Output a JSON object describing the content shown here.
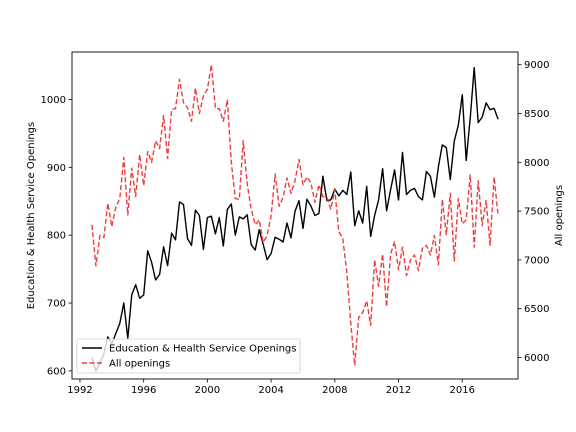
{
  "chart_data": {
    "type": "line",
    "title": "",
    "xlabel": "",
    "ylabel": "Education & Health Service Openings",
    "y2label": "All openings",
    "xlim": [
      1991.5,
      2019.5
    ],
    "ylim": [
      588,
      1070
    ],
    "y2lim": [
      5780,
      9130
    ],
    "x_ticks": [
      1992,
      1996,
      2000,
      2004,
      2008,
      2012,
      2016
    ],
    "y_ticks": [
      600,
      700,
      800,
      900,
      1000
    ],
    "y2_ticks": [
      6000,
      6500,
      7000,
      7500,
      8000,
      8500,
      9000
    ],
    "grid": false,
    "legend_position": "lower-left",
    "series": [
      {
        "name": "Education & Health Service Openings",
        "axis": "left",
        "color": "#000000",
        "style": "solid",
        "x": [
          1992.75,
          1993.0,
          1993.25,
          1993.5,
          1993.75,
          1994.0,
          1994.25,
          1994.5,
          1994.75,
          1995.0,
          1995.25,
          1995.5,
          1995.75,
          1996.0,
          1996.25,
          1996.5,
          1996.75,
          1997.0,
          1997.25,
          1997.5,
          1997.75,
          1998.0,
          1998.25,
          1998.5,
          1998.75,
          1999.0,
          1999.25,
          1999.5,
          1999.75,
          2000.0,
          2000.25,
          2000.5,
          2000.75,
          2001.0,
          2001.25,
          2001.5,
          2001.75,
          2002.0,
          2002.25,
          2002.5,
          2002.75,
          2003.0,
          2003.25,
          2003.5,
          2003.75,
          2004.0,
          2004.25,
          2004.5,
          2004.75,
          2005.0,
          2005.25,
          2005.5,
          2005.75,
          2006.0,
          2006.25,
          2006.5,
          2006.75,
          2007.0,
          2007.25,
          2007.5,
          2007.75,
          2008.0,
          2008.25,
          2008.5,
          2008.75,
          2009.0,
          2009.25,
          2009.5,
          2009.75,
          2010.0,
          2010.25,
          2010.5,
          2010.75,
          2011.0,
          2011.25,
          2011.5,
          2011.75,
          2012.0,
          2012.25,
          2012.5,
          2012.75,
          2013.0,
          2013.25,
          2013.5,
          2013.75,
          2014.0,
          2014.25,
          2014.5,
          2014.75,
          2015.0,
          2015.25,
          2015.5,
          2015.75,
          2016.0,
          2016.25,
          2016.5,
          2016.75,
          2017.0,
          2017.25,
          2017.5,
          2017.75,
          2018.0,
          2018.25
        ],
        "values": [
          620,
          600,
          612,
          625,
          650,
          640,
          655,
          670,
          700,
          648,
          712,
          727,
          707,
          712,
          777,
          760,
          734,
          742,
          783,
          755,
          803,
          793,
          849,
          845,
          795,
          785,
          837,
          829,
          779,
          826,
          828,
          802,
          826,
          784,
          838,
          846,
          800,
          827,
          824,
          830,
          786,
          778,
          808,
          787,
          764,
          773,
          797,
          794,
          790,
          818,
          796,
          835,
          851,
          810,
          853,
          843,
          829,
          832,
          887,
          851,
          852,
          868,
          858,
          866,
          860,
          893,
          814,
          836,
          818,
          872,
          798,
          829,
          852,
          898,
          836,
          867,
          896,
          852,
          922,
          860,
          866,
          869,
          857,
          852,
          894,
          887,
          856,
          901,
          933,
          929,
          882,
          939,
          962,
          1007,
          910,
          972,
          1047,
          966,
          974,
          995,
          985,
          987,
          971
        ]
      },
      {
        "name": "All openings",
        "axis": "right",
        "color": "#f03c3c",
        "style": "dashed",
        "x": [
          1992.75,
          1993.0,
          1993.25,
          1993.5,
          1993.75,
          1994.0,
          1994.25,
          1994.5,
          1994.75,
          1995.0,
          1995.25,
          1995.5,
          1995.75,
          1996.0,
          1996.25,
          1996.5,
          1996.75,
          1997.0,
          1997.25,
          1997.5,
          1997.75,
          1998.0,
          1998.25,
          1998.5,
          1998.75,
          1999.0,
          1999.25,
          1999.5,
          1999.75,
          2000.0,
          2000.25,
          2000.5,
          2000.75,
          2001.0,
          2001.25,
          2001.5,
          2001.75,
          2002.0,
          2002.25,
          2002.5,
          2002.75,
          2003.0,
          2003.25,
          2003.5,
          2003.75,
          2004.0,
          2004.25,
          2004.5,
          2004.75,
          2005.0,
          2005.25,
          2005.5,
          2005.75,
          2006.0,
          2006.25,
          2006.5,
          2006.75,
          2007.0,
          2007.25,
          2007.5,
          2007.75,
          2008.0,
          2008.25,
          2008.5,
          2008.75,
          2009.0,
          2009.25,
          2009.5,
          2009.75,
          2010.0,
          2010.25,
          2010.5,
          2010.75,
          2011.0,
          2011.25,
          2011.5,
          2011.75,
          2012.0,
          2012.25,
          2012.5,
          2012.75,
          2013.0,
          2013.25,
          2013.5,
          2013.75,
          2014.0,
          2014.25,
          2014.5,
          2014.75,
          2015.0,
          2015.25,
          2015.5,
          2015.75,
          2016.0,
          2016.25,
          2016.5,
          2016.75,
          2017.0,
          2017.25,
          2017.5,
          2017.75,
          2018.0,
          2018.25
        ],
        "values": [
          7360,
          6940,
          7250,
          7230,
          7580,
          7340,
          7540,
          7630,
          8050,
          7460,
          7940,
          7650,
          8080,
          7760,
          8110,
          8000,
          8220,
          8140,
          8480,
          8040,
          8540,
          8550,
          8850,
          8610,
          8560,
          8420,
          8760,
          8500,
          8680,
          8750,
          9000,
          8550,
          8550,
          8420,
          8640,
          8000,
          7630,
          7620,
          8220,
          7780,
          7520,
          7360,
          7410,
          7180,
          7250,
          7450,
          7880,
          7550,
          7640,
          7840,
          7680,
          7810,
          8030,
          7770,
          7850,
          7790,
          7590,
          7770,
          7650,
          7640,
          7520,
          7720,
          7290,
          7220,
          6870,
          6350,
          5920,
          6410,
          6460,
          6580,
          6330,
          7000,
          6730,
          7060,
          6520,
          7060,
          7190,
          6900,
          7130,
          6840,
          7000,
          7050,
          6890,
          7120,
          7150,
          7050,
          7250,
          6950,
          7620,
          7260,
          7680,
          6990,
          7630,
          7370,
          7410,
          7870,
          7130,
          7810,
          7350,
          7610,
          7150,
          7850,
          7450
        ]
      }
    ]
  }
}
